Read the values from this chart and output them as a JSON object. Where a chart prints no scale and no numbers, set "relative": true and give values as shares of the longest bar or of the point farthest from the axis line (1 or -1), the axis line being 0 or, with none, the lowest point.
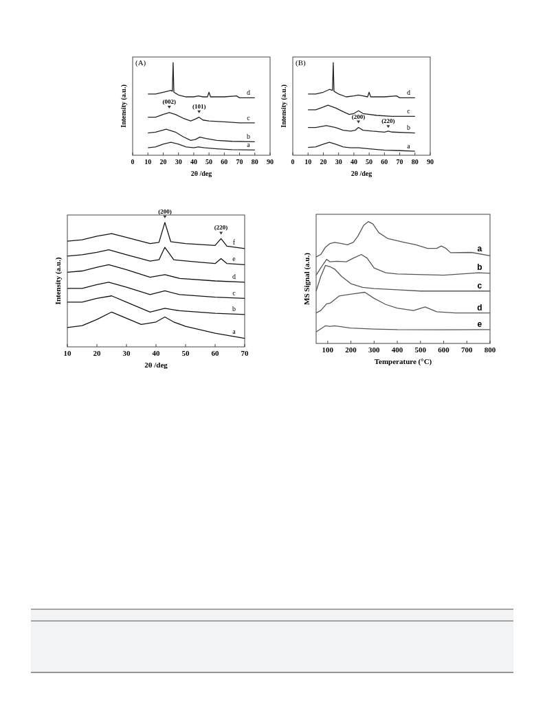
{
  "chart_data": [
    {
      "type": "line",
      "title": "(A)",
      "xlabel": "2θ /deg",
      "ylabel": "Intensity (a.u.)",
      "relative": true,
      "xlim": [
        0,
        90
      ],
      "xticks": [
        0,
        10,
        20,
        30,
        40,
        50,
        60,
        70,
        80,
        90
      ],
      "legend": false,
      "grid": false,
      "line_style": "solid",
      "marker": "none",
      "annotations": [
        {
          "text": "(002)",
          "x": 24,
          "y": 0.46
        },
        {
          "text": "(101)",
          "x": 43.5,
          "y": 0.41
        }
      ],
      "series": [
        {
          "name": "a",
          "color": "#222222",
          "x": [
            10,
            15,
            20,
            25,
            30,
            35,
            40,
            43,
            47,
            55,
            65,
            80
          ],
          "values": [
            0.08,
            0.09,
            0.12,
            0.14,
            0.12,
            0.09,
            0.08,
            0.09,
            0.08,
            0.07,
            0.06,
            0.056
          ]
        },
        {
          "name": "b",
          "color": "#222222",
          "x": [
            10,
            15,
            22,
            28,
            33,
            38,
            41,
            44,
            48,
            55,
            65,
            80
          ],
          "values": [
            0.24,
            0.25,
            0.28,
            0.25,
            0.2,
            0.16,
            0.17,
            0.195,
            0.18,
            0.16,
            0.15,
            0.146
          ]
        },
        {
          "name": "c",
          "color": "#222222",
          "x": [
            10,
            15,
            20,
            24,
            28,
            33,
            38,
            41,
            43.5,
            46,
            50,
            60,
            70,
            80
          ],
          "values": [
            0.41,
            0.41,
            0.44,
            0.46,
            0.44,
            0.4,
            0.37,
            0.39,
            0.41,
            0.38,
            0.37,
            0.36,
            0.35,
            0.35
          ]
        },
        {
          "name": "d",
          "color": "#222222",
          "x": [
            10,
            15,
            20,
            25,
            26,
            26.5,
            27,
            30,
            35,
            40,
            43,
            46,
            49,
            50,
            51,
            60,
            68,
            70,
            80
          ],
          "values": [
            0.66,
            0.66,
            0.68,
            0.7,
            0.69,
            1,
            0.68,
            0.65,
            0.63,
            0.63,
            0.64,
            0.63,
            0.63,
            0.68,
            0.63,
            0.63,
            0.64,
            0.62,
            0.62
          ]
        }
      ]
    },
    {
      "type": "line",
      "title": "(B)",
      "xlabel": "2θ /deg",
      "ylabel": "Intensity (a.u.)",
      "relative": true,
      "xlim": [
        0,
        90
      ],
      "xticks": [
        0,
        10,
        20,
        30,
        40,
        50,
        60,
        70,
        80,
        90
      ],
      "legend": false,
      "grid": false,
      "line_style": "solid",
      "marker": "none",
      "annotations": [
        {
          "text": "(200)",
          "x": 43,
          "y": 0.3
        },
        {
          "text": "(220)",
          "x": 62.5,
          "y": 0.25
        }
      ],
      "series": [
        {
          "name": "a",
          "color": "#222222",
          "x": [
            10,
            15,
            20,
            24,
            28,
            33,
            38,
            43,
            50,
            60,
            70,
            80
          ],
          "values": [
            0.085,
            0.09,
            0.12,
            0.14,
            0.12,
            0.09,
            0.08,
            0.08,
            0.07,
            0.055,
            0.05,
            0.044
          ]
        },
        {
          "name": "b",
          "color": "#222222",
          "x": [
            10,
            15,
            22,
            28,
            33,
            38,
            41,
            43,
            46,
            52,
            60,
            62.5,
            65,
            80
          ],
          "values": [
            0.3,
            0.3,
            0.32,
            0.3,
            0.27,
            0.26,
            0.27,
            0.3,
            0.27,
            0.26,
            0.25,
            0.26,
            0.25,
            0.24
          ]
        },
        {
          "name": "c",
          "color": "#222222",
          "x": [
            10,
            15,
            20,
            23,
            28,
            33,
            37,
            40,
            43,
            46,
            55,
            65,
            80
          ],
          "values": [
            0.49,
            0.49,
            0.52,
            0.54,
            0.51,
            0.47,
            0.44,
            0.45,
            0.48,
            0.45,
            0.43,
            0.42,
            0.42
          ]
        },
        {
          "name": "d",
          "color": "#222222",
          "x": [
            10,
            15,
            20,
            24,
            26,
            26.5,
            27,
            30,
            35,
            40,
            43,
            46,
            49,
            50,
            51,
            60,
            68,
            70,
            80
          ],
          "values": [
            0.66,
            0.66,
            0.68,
            0.71,
            0.7,
            1,
            0.69,
            0.66,
            0.63,
            0.64,
            0.65,
            0.64,
            0.63,
            0.68,
            0.63,
            0.63,
            0.64,
            0.62,
            0.62
          ]
        }
      ]
    },
    {
      "type": "line",
      "xlabel": "2θ /deg",
      "ylabel": "Intensity (a.u.)",
      "relative": true,
      "xlim": [
        10,
        70
      ],
      "xticks": [
        10,
        20,
        30,
        40,
        50,
        60,
        70
      ],
      "legend": false,
      "grid": false,
      "line_style": "solid",
      "marker": "none",
      "annotations": [
        {
          "text": "(200)",
          "x": 43,
          "y": 1
        },
        {
          "text": "(220)",
          "x": 62,
          "y": 0.87
        }
      ],
      "series": [
        {
          "name": "a",
          "color": "#111111",
          "x": [
            10,
            15,
            20,
            25,
            30,
            35,
            40,
            43,
            46,
            50,
            60,
            70
          ],
          "values": [
            0.155,
            0.17,
            0.22,
            0.28,
            0.23,
            0.18,
            0.2,
            0.24,
            0.2,
            0.165,
            0.11,
            0.068
          ]
        },
        {
          "name": "b",
          "color": "#111111",
          "x": [
            10,
            15,
            20,
            25,
            30,
            38,
            43,
            48,
            60,
            70
          ],
          "values": [
            0.36,
            0.36,
            0.39,
            0.41,
            0.36,
            0.28,
            0.31,
            0.29,
            0.27,
            0.26
          ]
        },
        {
          "name": "c",
          "color": "#111111",
          "x": [
            10,
            15,
            20,
            24,
            30,
            38,
            43,
            48,
            60,
            70
          ],
          "values": [
            0.47,
            0.47,
            0.5,
            0.52,
            0.48,
            0.42,
            0.45,
            0.42,
            0.4,
            0.39
          ]
        },
        {
          "name": "d",
          "color": "#111111",
          "x": [
            10,
            15,
            20,
            24,
            30,
            38,
            43,
            48,
            60,
            70
          ],
          "values": [
            0.6,
            0.61,
            0.64,
            0.66,
            0.62,
            0.56,
            0.58,
            0.55,
            0.53,
            0.52
          ]
        },
        {
          "name": "e",
          "color": "#111111",
          "x": [
            10,
            15,
            20,
            24,
            30,
            38,
            41,
            43,
            46,
            55,
            60,
            62,
            64,
            70
          ],
          "values": [
            0.73,
            0.74,
            0.76,
            0.78,
            0.74,
            0.69,
            0.7,
            0.8,
            0.7,
            0.68,
            0.67,
            0.71,
            0.67,
            0.66
          ]
        },
        {
          "name": "f",
          "color": "#111111",
          "x": [
            10,
            15,
            20,
            25,
            30,
            38,
            41,
            43,
            45,
            50,
            60,
            62,
            64,
            70
          ],
          "values": [
            0.85,
            0.86,
            0.89,
            0.91,
            0.88,
            0.83,
            0.84,
            1,
            0.845,
            0.83,
            0.815,
            0.87,
            0.81,
            0.79
          ]
        }
      ]
    },
    {
      "type": "line",
      "xlabel": "Temperature (°C)",
      "ylabel": "MS Signal (a.u.)",
      "relative": true,
      "xlim": [
        50,
        800
      ],
      "xticks": [
        100,
        200,
        300,
        400,
        500,
        600,
        700,
        800
      ],
      "legend": false,
      "grid": false,
      "line_style": "solid",
      "marker": "none",
      "series": [
        {
          "name": "a",
          "color": "#555555",
          "x": [
            50,
            70,
            90,
            110,
            130,
            160,
            185,
            210,
            230,
            255,
            275,
            295,
            320,
            360,
            430,
            480,
            530,
            570,
            590,
            610,
            630,
            720,
            800
          ],
          "values": [
            0.71,
            0.73,
            0.79,
            0.82,
            0.83,
            0.82,
            0.81,
            0.83,
            0.88,
            0.97,
            1,
            0.98,
            0.91,
            0.86,
            0.83,
            0.81,
            0.78,
            0.78,
            0.8,
            0.78,
            0.745,
            0.747,
            0.72
          ]
        },
        {
          "name": "b",
          "color": "#555555",
          "x": [
            50,
            70,
            95,
            110,
            140,
            180,
            210,
            245,
            270,
            300,
            350,
            400,
            600,
            750,
            800
          ],
          "values": [
            0.56,
            0.62,
            0.69,
            0.67,
            0.675,
            0.67,
            0.7,
            0.73,
            0.7,
            0.62,
            0.58,
            0.57,
            0.56,
            0.58,
            0.576
          ]
        },
        {
          "name": "c",
          "color": "#555555",
          "x": [
            50,
            70,
            90,
            110,
            130,
            160,
            200,
            250,
            300,
            400,
            500,
            650,
            800
          ],
          "values": [
            0.43,
            0.55,
            0.64,
            0.63,
            0.61,
            0.55,
            0.49,
            0.46,
            0.45,
            0.44,
            0.43,
            0.43,
            0.43
          ]
        },
        {
          "name": "d",
          "color": "#555555",
          "x": [
            50,
            70,
            95,
            110,
            150,
            220,
            260,
            300,
            350,
            400,
            470,
            520,
            570,
            650,
            800
          ],
          "values": [
            0.25,
            0.27,
            0.325,
            0.33,
            0.39,
            0.41,
            0.42,
            0.37,
            0.32,
            0.29,
            0.27,
            0.3,
            0.26,
            0.25,
            0.25
          ]
        },
        {
          "name": "e",
          "color": "#555555",
          "x": [
            50,
            70,
            90,
            110,
            130,
            200,
            300,
            400,
            600,
            800
          ],
          "values": [
            0.094,
            0.12,
            0.145,
            0.14,
            0.145,
            0.126,
            0.118,
            0.113,
            0.112,
            0.113
          ]
        }
      ]
    }
  ]
}
